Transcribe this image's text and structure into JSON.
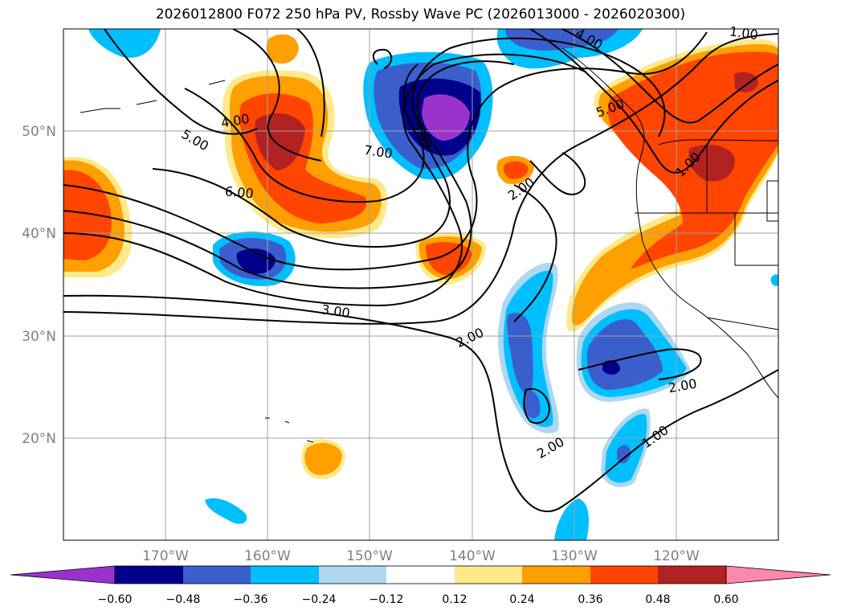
{
  "title": "2026012800 F072 250 hPa PV, Rossby Wave PC (2026013000 - 2026020300)",
  "map": {
    "lon_range": [
      -180,
      -110
    ],
    "lat_range": [
      10,
      60
    ],
    "lat_ticks": [
      "50°N",
      "40°N",
      "30°N",
      "20°N"
    ],
    "lon_ticks": [
      "170°W",
      "160°W",
      "150°W",
      "140°W",
      "130°W",
      "120°W"
    ]
  },
  "contour_labels": [
    "4.00",
    "5.00",
    "6.00",
    "7.00",
    "5.00",
    "4.00",
    "5.00",
    "1.00",
    "1.00",
    "2.00",
    "3.00",
    "2.00",
    "2.00",
    "2.00",
    "1.00"
  ],
  "colorbar": {
    "ticks": [
      "−0.60",
      "−0.48",
      "−0.36",
      "−0.24",
      "−0.12",
      "0.12",
      "0.24",
      "0.36",
      "0.48",
      "0.60"
    ],
    "colors": [
      "#9933cc",
      "#00008b",
      "#3a5fcd",
      "#00bfff",
      "#add8f0",
      "#ffffff",
      "#ffe98a",
      "#ff9f00",
      "#ff4500",
      "#b22222",
      "#ff88aa"
    ]
  }
}
